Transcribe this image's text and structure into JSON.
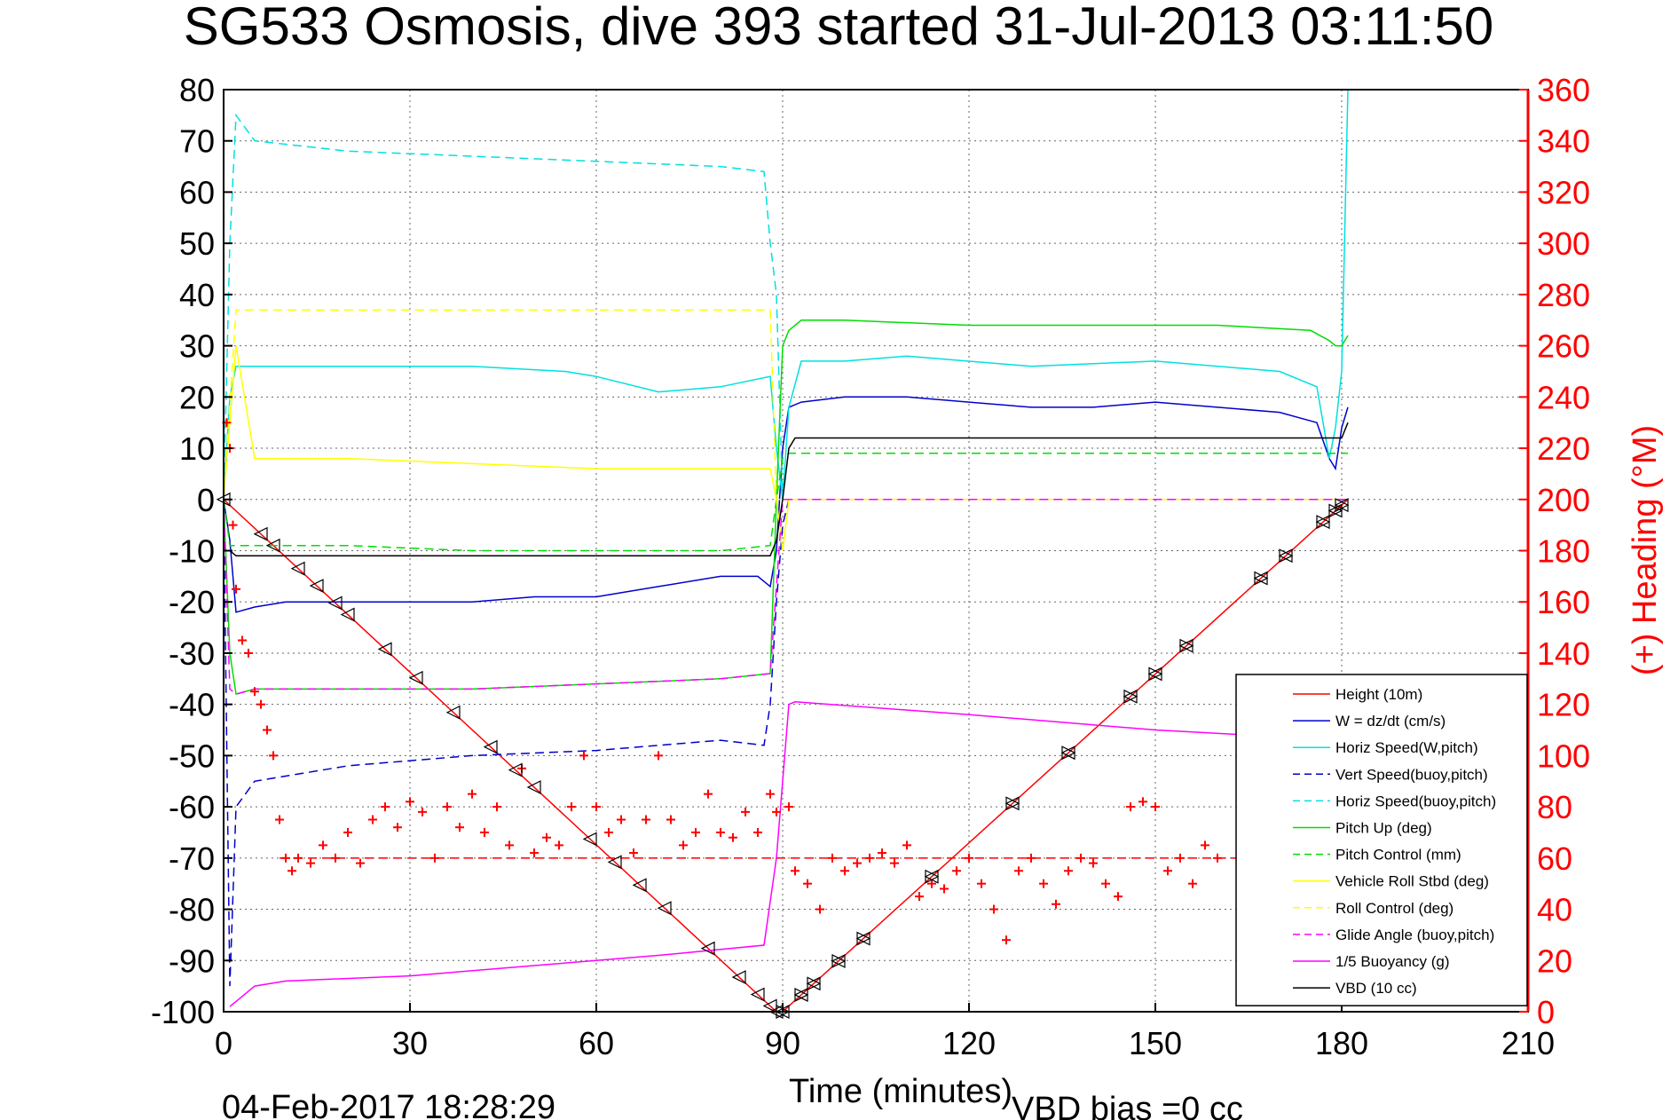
{
  "chart_data": {
    "type": "line",
    "title": "SG533 Osmosis, dive 393 started 31-Jul-2013 03:11:50",
    "xlabel": "Time (minutes)",
    "ylabel": "",
    "y2label": "(+) Heading (°M)",
    "xlim": [
      0,
      210
    ],
    "ylim": [
      -100,
      80
    ],
    "y2lim": [
      0,
      360
    ],
    "xticks": [
      "0",
      "30",
      "60",
      "90",
      "120",
      "150",
      "180",
      "210"
    ],
    "yticks": [
      "80",
      "70",
      "60",
      "50",
      "40",
      "30",
      "20",
      "10",
      "0",
      "-10",
      "-20",
      "-30",
      "-40",
      "-50",
      "-60",
      "-70",
      "-80",
      "-90",
      "-100"
    ],
    "y2ticks": [
      "360",
      "340",
      "320",
      "300",
      "280",
      "260",
      "240",
      "220",
      "200",
      "180",
      "160",
      "140",
      "120",
      "100",
      "80",
      "60",
      "40",
      "20",
      "0"
    ],
    "grid": true,
    "legend_position": "bottom-right",
    "footer_left": "04-Feb-2017 18:28:29",
    "footer_right": "VBD bias =0 cc",
    "colors": {
      "red": "#ff0000",
      "blue": "#0000cc",
      "cyan": "#00e0e0",
      "green": "#00dd00",
      "yellow": "#ffff00",
      "magenta": "#ff00ff",
      "black": "#000000"
    },
    "series": [
      {
        "name": "Height (10m)",
        "color": "#ff0000",
        "style": "solid",
        "x": [
          0,
          89,
          90,
          181
        ],
        "y": [
          0,
          -100,
          -100,
          0
        ]
      },
      {
        "name": "W = dz/dt (cm/s)",
        "color": "#0000cc",
        "style": "solid",
        "x": [
          0,
          1,
          2,
          5,
          10,
          20,
          30,
          40,
          50,
          60,
          70,
          80,
          86,
          88,
          89,
          90,
          91,
          93,
          100,
          110,
          120,
          130,
          140,
          150,
          160,
          170,
          176,
          178,
          179,
          180,
          181
        ],
        "y": [
          0,
          -8,
          -22,
          -21,
          -20,
          -20,
          -20,
          -20,
          -19,
          -19,
          -17,
          -15,
          -15,
          -17,
          -10,
          10,
          18,
          19,
          20,
          20,
          19,
          18,
          18,
          19,
          18,
          17,
          15,
          8,
          6,
          14,
          18
        ]
      },
      {
        "name": "Horiz Speed(W,pitch)",
        "color": "#00e0e0",
        "style": "solid",
        "x": [
          0,
          1,
          2,
          5,
          20,
          40,
          55,
          60,
          70,
          80,
          88,
          89,
          90,
          91,
          93,
          100,
          110,
          130,
          150,
          170,
          176,
          178,
          179,
          180,
          181
        ],
        "y": [
          0,
          20,
          26,
          26,
          26,
          26,
          25,
          24,
          21,
          22,
          24,
          10,
          0,
          18,
          27,
          27,
          28,
          26,
          27,
          25,
          22,
          8,
          14,
          25,
          80
        ]
      },
      {
        "name": "Vert Speed(buoy,pitch)",
        "color": "#0000cc",
        "style": "dashed",
        "x": [
          0,
          1,
          2,
          5,
          20,
          40,
          60,
          80,
          87,
          88,
          89,
          90,
          91,
          180,
          181
        ],
        "y": [
          0,
          -95,
          -60,
          -55,
          -52,
          -50,
          -49,
          -47,
          -48,
          -40,
          -20,
          -5,
          0,
          0,
          0
        ]
      },
      {
        "name": "Horiz Speed(buoy,pitch)",
        "color": "#00e0e0",
        "style": "dashed",
        "x": [
          0,
          1,
          2,
          5,
          20,
          40,
          60,
          80,
          87,
          88,
          89,
          90,
          91,
          180,
          181
        ],
        "y": [
          0,
          50,
          75,
          70,
          68,
          67,
          66,
          65,
          64,
          50,
          40,
          0,
          0,
          0,
          0
        ]
      },
      {
        "name": "Pitch Up (deg)",
        "color": "#00dd00",
        "style": "solid",
        "x": [
          0,
          1,
          2,
          5,
          20,
          40,
          60,
          80,
          88,
          89,
          90,
          91,
          93,
          100,
          120,
          140,
          160,
          175,
          178,
          179,
          180,
          181
        ],
        "y": [
          0,
          -30,
          -38,
          -37,
          -37,
          -37,
          -36,
          -35,
          -34,
          0,
          30,
          33,
          35,
          35,
          34,
          34,
          34,
          33,
          31,
          30,
          30,
          32
        ]
      },
      {
        "name": "Pitch Control (mm)",
        "color": "#00dd00",
        "style": "dashed",
        "x": [
          0,
          1,
          2,
          5,
          20,
          40,
          60,
          80,
          88,
          89,
          90,
          91,
          120,
          150,
          180,
          181
        ],
        "y": [
          0,
          -9,
          -9,
          -9,
          -9,
          -10,
          -10,
          -10,
          -9,
          0,
          8,
          9,
          9,
          9,
          9,
          9
        ]
      },
      {
        "name": "Vehicle Roll Stbd (deg)",
        "color": "#ffff00",
        "style": "solid",
        "x": [
          0,
          2,
          5,
          20,
          40,
          60,
          80,
          88,
          89,
          90,
          91,
          92,
          95,
          120,
          150,
          180,
          181
        ],
        "y": [
          0,
          30,
          8,
          8,
          7,
          6,
          6,
          6,
          0,
          -10,
          0,
          0,
          0,
          0,
          0,
          0,
          0
        ]
      },
      {
        "name": "Roll Control (deg)",
        "color": "#ffff00",
        "style": "dashed",
        "x": [
          0,
          2,
          20,
          40,
          60,
          80,
          88,
          89,
          90,
          91,
          180,
          181
        ],
        "y": [
          0,
          37,
          37,
          37,
          37,
          37,
          37,
          0,
          0,
          0,
          0,
          0
        ]
      },
      {
        "name": "Glide Angle (buoy,pitch)",
        "color": "#ff00ff",
        "style": "dashed",
        "x": [
          0,
          1,
          2,
          5,
          20,
          40,
          60,
          80,
          88,
          89,
          90,
          91,
          180,
          181
        ],
        "y": [
          0,
          -37,
          -38,
          -37,
          -37,
          -37,
          -36,
          -35,
          -34,
          -17,
          0,
          0,
          0,
          0
        ]
      },
      {
        "name": "1/5 Buoyancy (g)",
        "color": "#ff00ff",
        "style": "solid",
        "x": [
          1,
          3,
          5,
          10,
          30,
          50,
          70,
          87,
          89,
          91,
          92,
          120,
          150,
          180
        ],
        "y": [
          -99,
          -97,
          -95,
          -94,
          -93,
          -91,
          -89,
          -87,
          -70,
          -40,
          -39.5,
          -42,
          -45,
          -47
        ]
      },
      {
        "name": "VBD (10 cc)",
        "color": "#000000",
        "style": "solid",
        "x": [
          1,
          2,
          30,
          60,
          88,
          89,
          90,
          91,
          92,
          120,
          150,
          180,
          181
        ],
        "y": [
          -10,
          -11,
          -11,
          -11,
          -11,
          -8,
          0,
          10,
          12,
          12,
          12,
          12,
          15
        ]
      }
    ],
    "heading": {
      "name": "Heading",
      "color": "#ff0000",
      "marker": "+",
      "axis": "right",
      "x": [
        0.5,
        1,
        1.5,
        2,
        3,
        4,
        5,
        6,
        7,
        8,
        9,
        10,
        11,
        12,
        14,
        16,
        18,
        20,
        22,
        24,
        26,
        28,
        30,
        32,
        34,
        36,
        38,
        40,
        42,
        44,
        46,
        48,
        50,
        52,
        54,
        56,
        58,
        60,
        62,
        64,
        66,
        68,
        70,
        72,
        74,
        76,
        78,
        80,
        82,
        84,
        86,
        88,
        89,
        91,
        92,
        94,
        96,
        98,
        100,
        102,
        104,
        106,
        108,
        110,
        112,
        114,
        116,
        118,
        120,
        122,
        124,
        126,
        128,
        130,
        132,
        134,
        136,
        138,
        140,
        142,
        144,
        146,
        148,
        150,
        152,
        154,
        156,
        158,
        160
      ],
      "y": [
        230,
        220,
        190,
        165,
        145,
        140,
        125,
        120,
        110,
        100,
        75,
        60,
        55,
        60,
        58,
        65,
        60,
        70,
        58,
        75,
        80,
        72,
        82,
        78,
        60,
        80,
        72,
        85,
        70,
        80,
        65,
        95,
        62,
        68,
        65,
        80,
        100,
        80,
        70,
        75,
        62,
        75,
        100,
        75,
        65,
        70,
        85,
        70,
        68,
        78,
        70,
        85,
        78,
        80,
        55,
        50,
        40,
        60,
        55,
        58,
        60,
        62,
        58,
        65,
        45,
        50,
        48,
        55,
        60,
        50,
        40,
        28,
        55,
        60,
        50,
        42,
        55,
        60,
        58,
        50,
        45,
        80,
        82,
        80,
        55,
        60,
        50,
        65,
        60
      ]
    },
    "heading_dashed_level": 60,
    "height_markers": {
      "x": [
        0,
        6,
        8,
        12,
        15,
        18,
        20,
        26,
        31,
        37,
        43,
        47,
        50,
        59,
        63,
        67,
        71,
        78,
        83,
        86,
        88,
        89,
        90,
        93,
        95,
        99,
        103,
        114,
        127,
        136,
        146,
        150,
        155,
        167,
        171,
        177,
        179,
        180
      ]
    }
  }
}
